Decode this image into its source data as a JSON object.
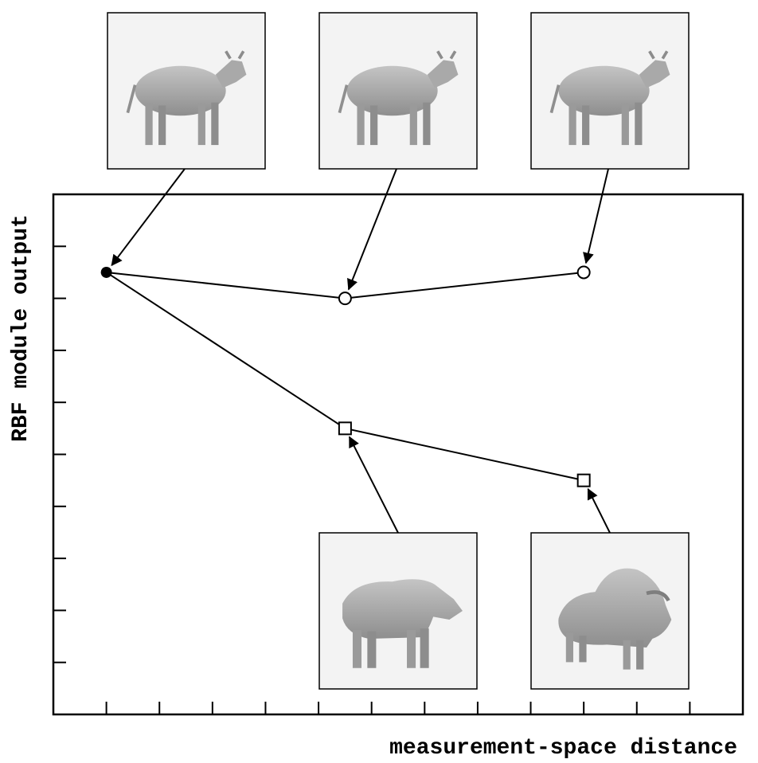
{
  "chart_data": {
    "type": "line",
    "xlabel": "measurement-space distance",
    "ylabel": "RBF module output",
    "xlim": [
      0,
      13
    ],
    "ylim": [
      0,
      10
    ],
    "x_ticks": [
      1,
      2,
      3,
      4,
      5,
      6,
      7,
      8,
      9,
      10,
      11,
      12
    ],
    "y_ticks": [
      1,
      2,
      3,
      4,
      5,
      6,
      7,
      8,
      9
    ],
    "grid": false,
    "series": [
      {
        "marker": "circle-open",
        "points": [
          {
            "x": 1,
            "y": 8.5
          },
          {
            "x": 5.5,
            "y": 8.0
          },
          {
            "x": 10,
            "y": 8.5
          }
        ]
      },
      {
        "marker": "square-open",
        "points": [
          {
            "x": 1,
            "y": 8.5
          },
          {
            "x": 5.5,
            "y": 5.5
          },
          {
            "x": 10,
            "y": 4.5
          }
        ]
      }
    ],
    "reference_point": {
      "x": 1,
      "y": 8.5,
      "marker": "circle-filled"
    },
    "thumbnails": [
      {
        "icon": "cow-icon",
        "target": "reference",
        "placement": "above"
      },
      {
        "icon": "cow-icon",
        "target": "circle-1",
        "placement": "above"
      },
      {
        "icon": "cow-icon",
        "target": "circle-2",
        "placement": "above"
      },
      {
        "icon": "bull-icon",
        "target": "square-1",
        "placement": "below"
      },
      {
        "icon": "bison-icon",
        "target": "square-2",
        "placement": "below"
      }
    ],
    "colors": {
      "line": "#000000",
      "thumb_bg": "#f3f3f3",
      "animal": "#a8a8a8"
    }
  }
}
